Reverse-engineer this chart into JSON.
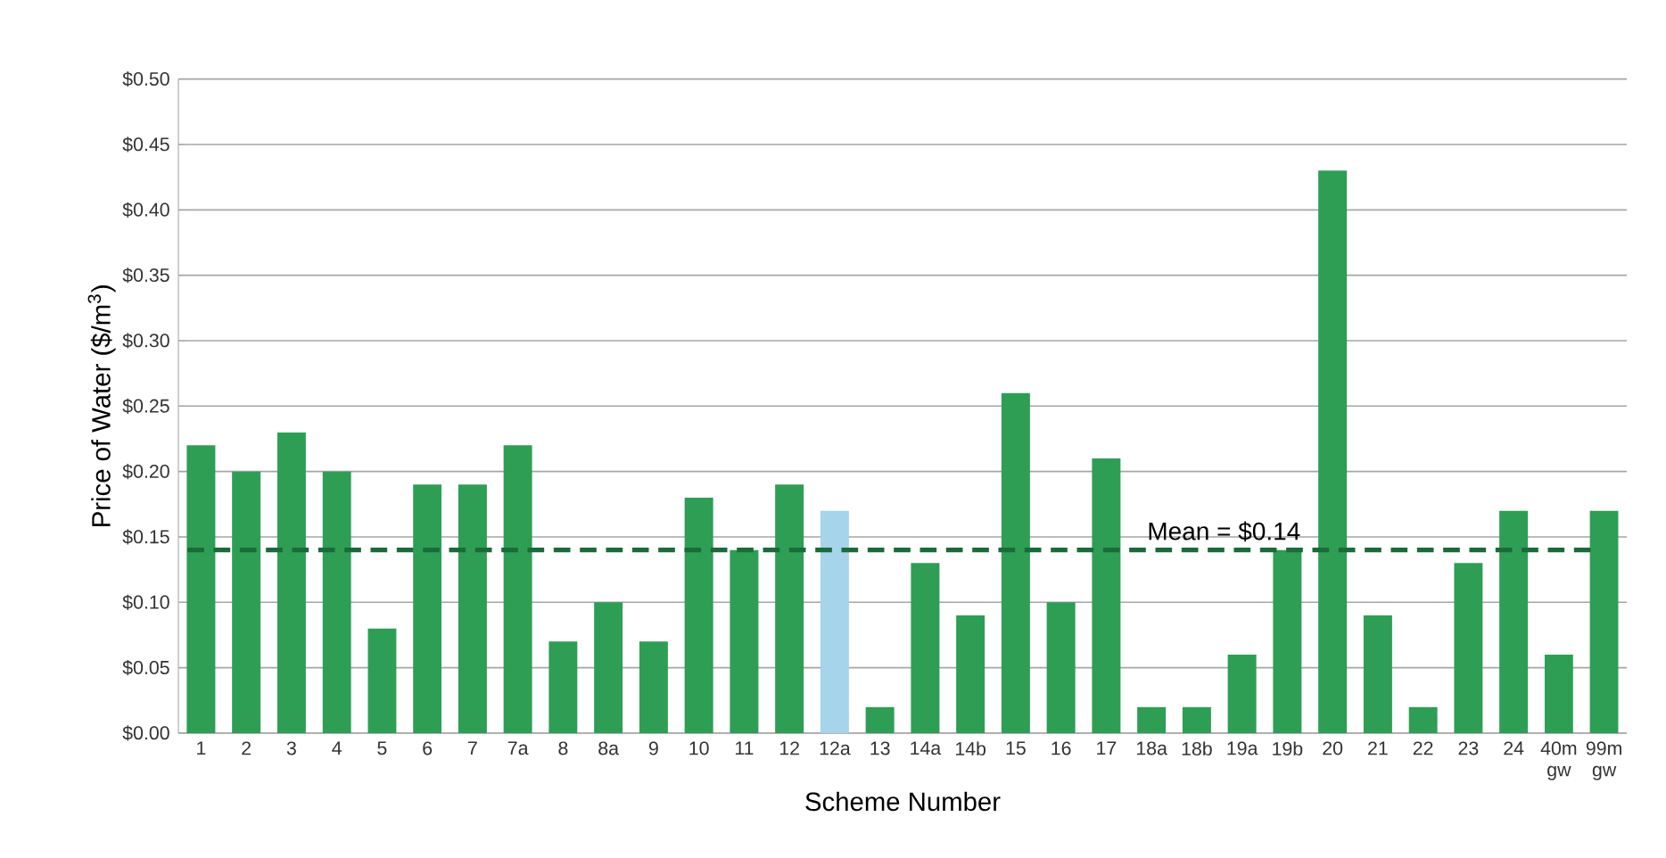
{
  "chart_data": {
    "type": "bar",
    "xlabel": "Scheme Number",
    "ylabel": "Price of Water ($/m$^{3}$)",
    "categories": [
      "1",
      "2",
      "3",
      "4",
      "5",
      "6",
      "7",
      "7a",
      "8",
      "8a",
      "9",
      "10",
      "11",
      "12",
      "12a",
      "13",
      "14a",
      "14b",
      "15",
      "16",
      "17",
      "18a",
      "18b",
      "19a",
      "19b",
      "20",
      "21",
      "22",
      "23",
      "24",
      "40m gw",
      "99m gw"
    ],
    "values": [
      0.22,
      0.2,
      0.23,
      0.2,
      0.08,
      0.19,
      0.19,
      0.22,
      0.07,
      0.1,
      0.07,
      0.18,
      0.14,
      0.19,
      0.17,
      0.02,
      0.13,
      0.09,
      0.26,
      0.1,
      0.21,
      0.02,
      0.02,
      0.06,
      0.14,
      0.43,
      0.09,
      0.02,
      0.13,
      0.17,
      0.06,
      0.17
    ],
    "colors": [
      "#2e9e55",
      "#2e9e55",
      "#2e9e55",
      "#2e9e55",
      "#2e9e55",
      "#2e9e55",
      "#2e9e55",
      "#2e9e55",
      "#2e9e55",
      "#2e9e55",
      "#2e9e55",
      "#2e9e55",
      "#2e9e55",
      "#2e9e55",
      "#a6d4ea",
      "#2e9e55",
      "#2e9e55",
      "#2e9e55",
      "#2e9e55",
      "#2e9e55",
      "#2e9e55",
      "#2e9e55",
      "#2e9e55",
      "#2e9e55",
      "#2e9e55",
      "#2e9e55",
      "#2e9e55",
      "#2e9e55",
      "#2e9e55",
      "#2e9e55",
      "#2e9e55",
      "#2e9e55"
    ],
    "ylim": [
      0,
      0.5
    ],
    "yticks": [
      {
        "value": 0,
        "label": "$0.00"
      },
      {
        "value": 0.05,
        "label": "$0.05"
      },
      {
        "value": 0.1,
        "label": "$0.10"
      },
      {
        "value": 0.15,
        "label": "$0.15"
      },
      {
        "value": 0.2,
        "label": "$0.20"
      },
      {
        "value": 0.25,
        "label": "$0.25"
      },
      {
        "value": 0.3,
        "label": "$0.30"
      },
      {
        "value": 0.35,
        "label": "$0.35"
      },
      {
        "value": 0.4,
        "label": "$0.40"
      },
      {
        "value": 0.45,
        "label": "$0.45"
      },
      {
        "value": 0.5,
        "label": "$0.50"
      }
    ],
    "grid": "y",
    "ref_lines": [
      {
        "axis": "y",
        "value": 0.14,
        "label": "Mean = $0.14",
        "color": "#1a6b3a",
        "line_style": "dashed"
      }
    ]
  }
}
